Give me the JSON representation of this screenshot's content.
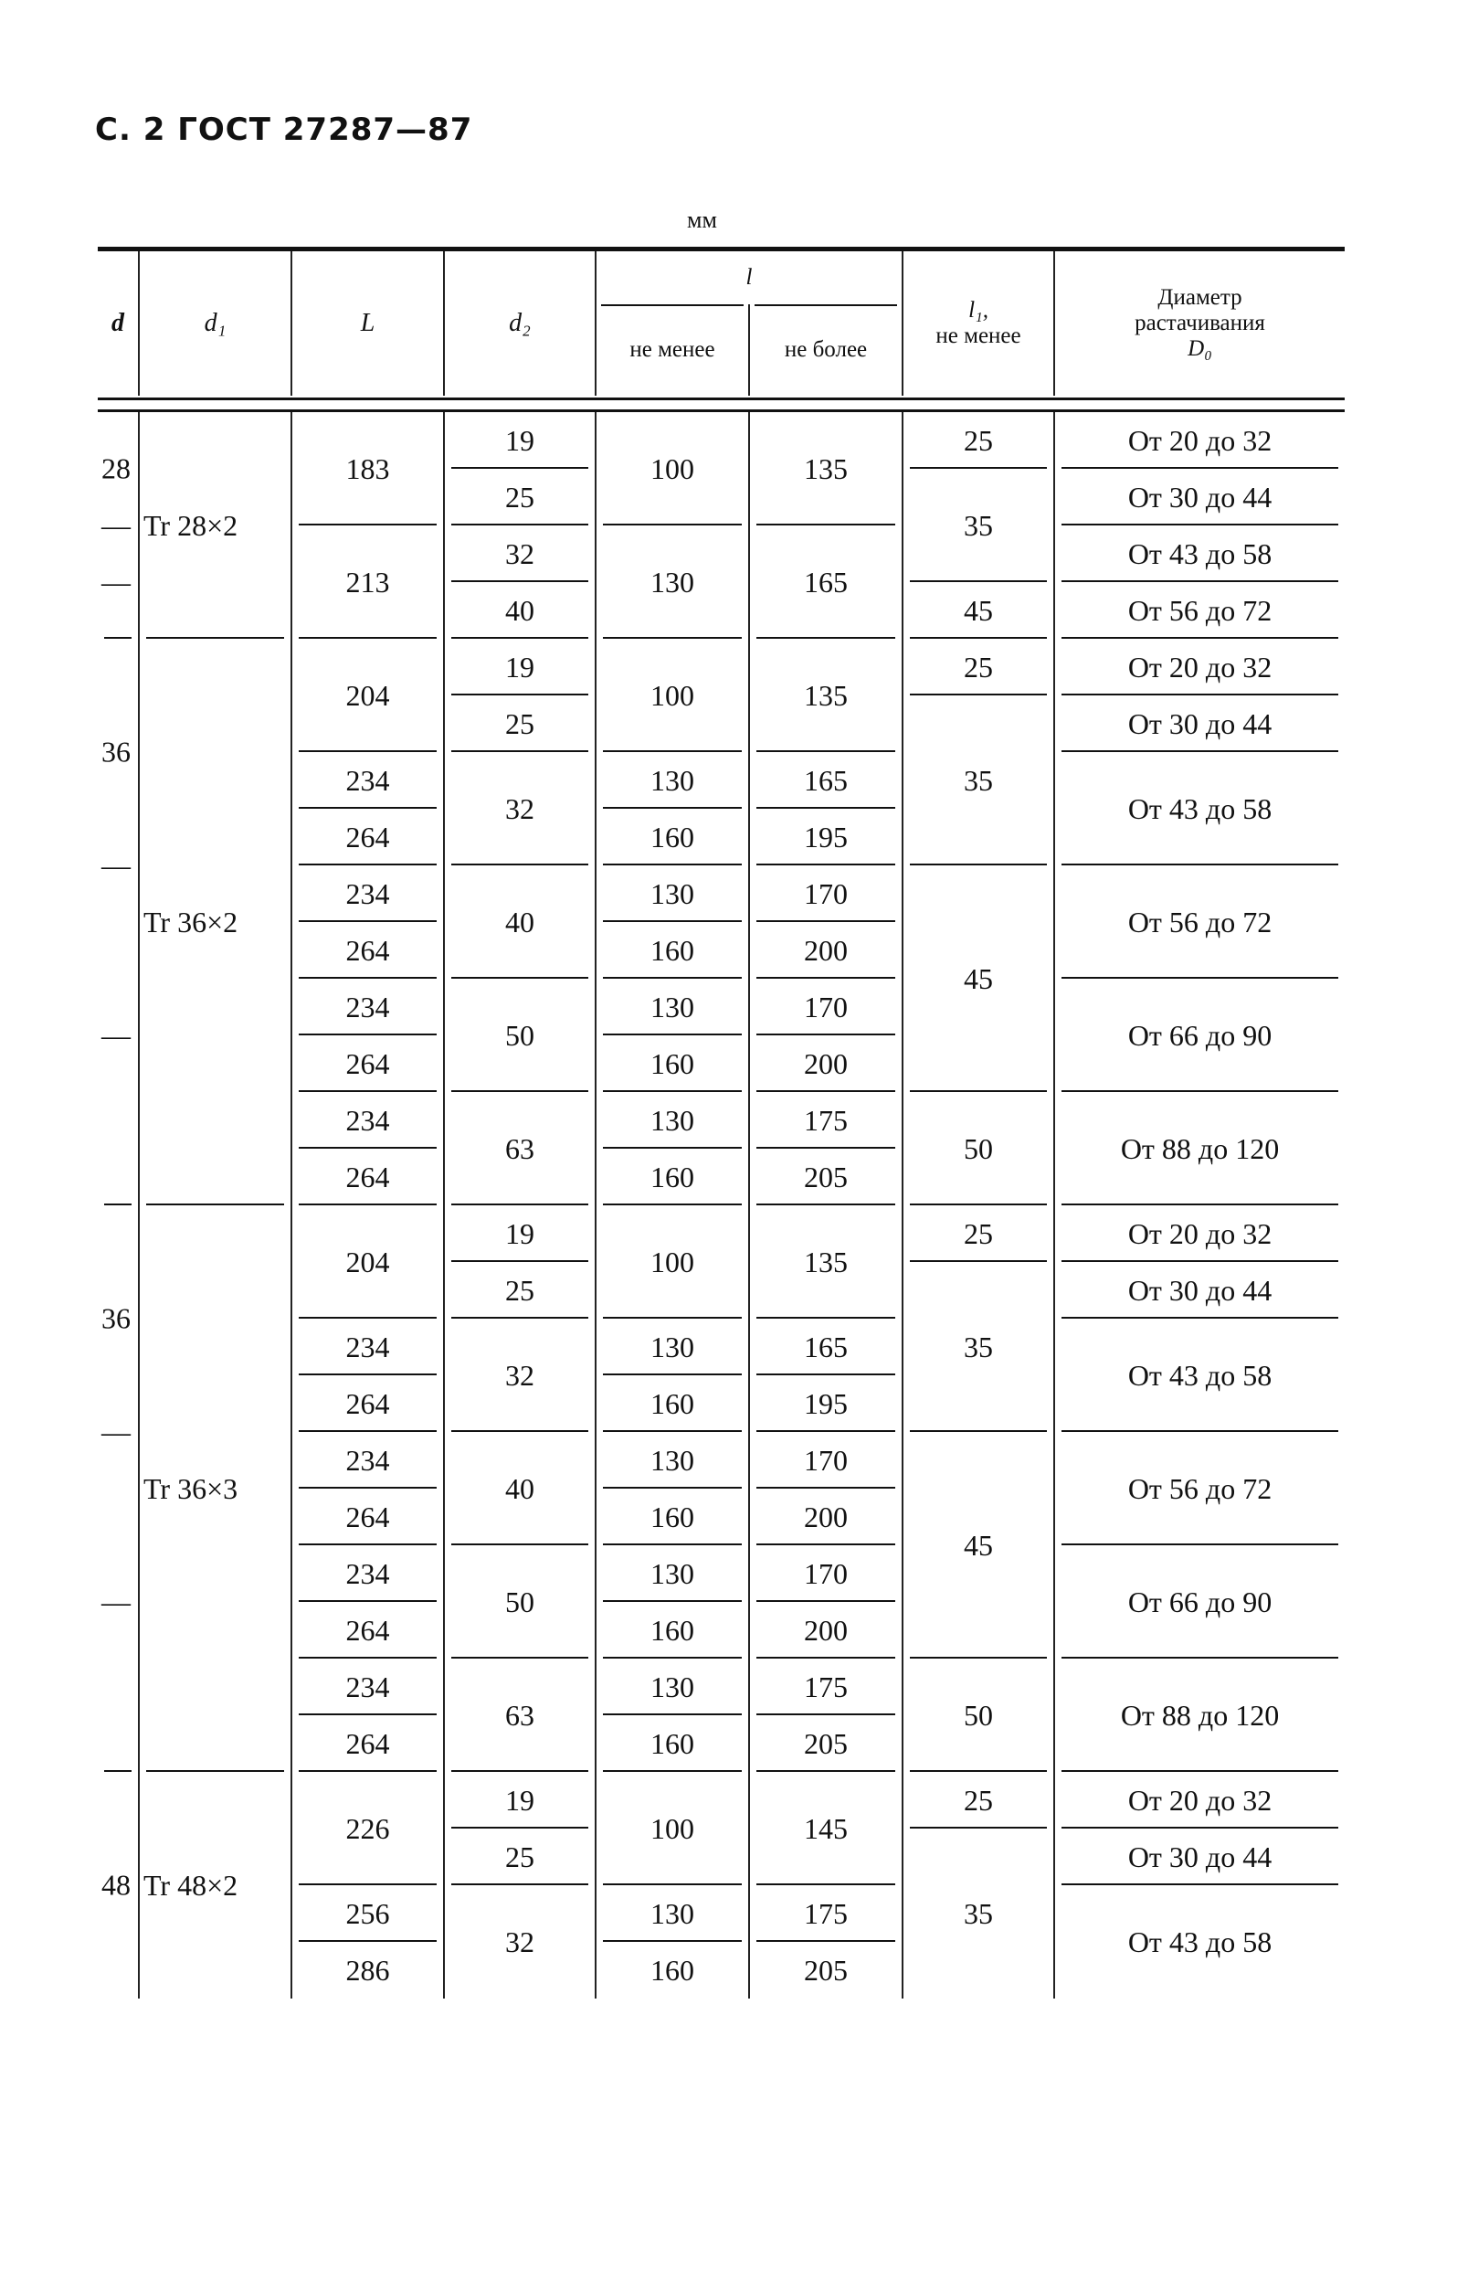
{
  "header": {
    "title": "С. 2 ГОСТ 27287—87",
    "unit": "мм"
  },
  "columns": {
    "d": "d",
    "d1": "d₁",
    "L": "L",
    "d2": "d₂",
    "l": "l",
    "l_min": "не менее",
    "l_max": "не более",
    "l1_sym": "l₁,",
    "l1_note": "не менее",
    "D0_line1": "Диаметр",
    "D0_line2": "растачивания",
    "D0_sym": "D₀"
  },
  "groups": [
    {
      "d": [
        "28",
        "—",
        "—"
      ],
      "d1": "Tr 28×2",
      "L": [
        "183",
        "213"
      ],
      "d2": [
        "19",
        "25",
        "32",
        "40"
      ],
      "l_min": [
        "100",
        "130"
      ],
      "l_max": [
        "135",
        "165"
      ],
      "l1": [
        "25",
        "35",
        "45"
      ],
      "D0": [
        "От 20 до 32",
        "От 30 до 44",
        "От 43 до 58",
        "От 56 до 72"
      ]
    },
    {
      "d": [
        "36",
        "—",
        "—"
      ],
      "d1": "Tr 36×2",
      "L": [
        "204",
        "234",
        "264",
        "234",
        "264",
        "234",
        "264",
        "234",
        "264"
      ],
      "d2": [
        "19",
        "25",
        "32",
        "40",
        "50",
        "63"
      ],
      "l_min": [
        "100",
        "130",
        "160",
        "130",
        "160",
        "130",
        "160",
        "130",
        "160"
      ],
      "l_max": [
        "135",
        "165",
        "195",
        "170",
        "200",
        "170",
        "200",
        "175",
        "205"
      ],
      "l1": [
        "25",
        "35",
        "45",
        "50"
      ],
      "D0": [
        "От 20 до 32",
        "От 30 до 44",
        "От 43 до 58",
        "От 56 до 72",
        "От 66 до 90",
        "От 88 до 120"
      ]
    },
    {
      "d": [
        "36",
        "—",
        "—"
      ],
      "d1": "Tr 36×3",
      "L": [
        "204",
        "234",
        "264",
        "234",
        "264",
        "234",
        "264",
        "234",
        "264"
      ],
      "d2": [
        "19",
        "25",
        "32",
        "40",
        "50",
        "63"
      ],
      "l_min": [
        "100",
        "130",
        "160",
        "130",
        "160",
        "130",
        "160",
        "130",
        "160"
      ],
      "l_max": [
        "135",
        "165",
        "195",
        "170",
        "200",
        "170",
        "200",
        "175",
        "205"
      ],
      "l1": [
        "25",
        "35",
        "45",
        "50"
      ],
      "D0": [
        "От 20 до 32",
        "От 30 до 44",
        "От 43 до 58",
        "От 56 до 72",
        "От 66 до 90",
        "От 88 до 120"
      ]
    },
    {
      "d": [
        "48"
      ],
      "d1": "Tr 48×2",
      "L": [
        "226",
        "256",
        "286"
      ],
      "d2": [
        "19",
        "25",
        "32"
      ],
      "l_min": [
        "100",
        "130",
        "160"
      ],
      "l_max": [
        "145",
        "175",
        "205"
      ],
      "l1": [
        "25",
        "35"
      ],
      "D0": [
        "От 20 до 32",
        "От 30 до 44",
        "От 43 до 58"
      ]
    }
  ]
}
